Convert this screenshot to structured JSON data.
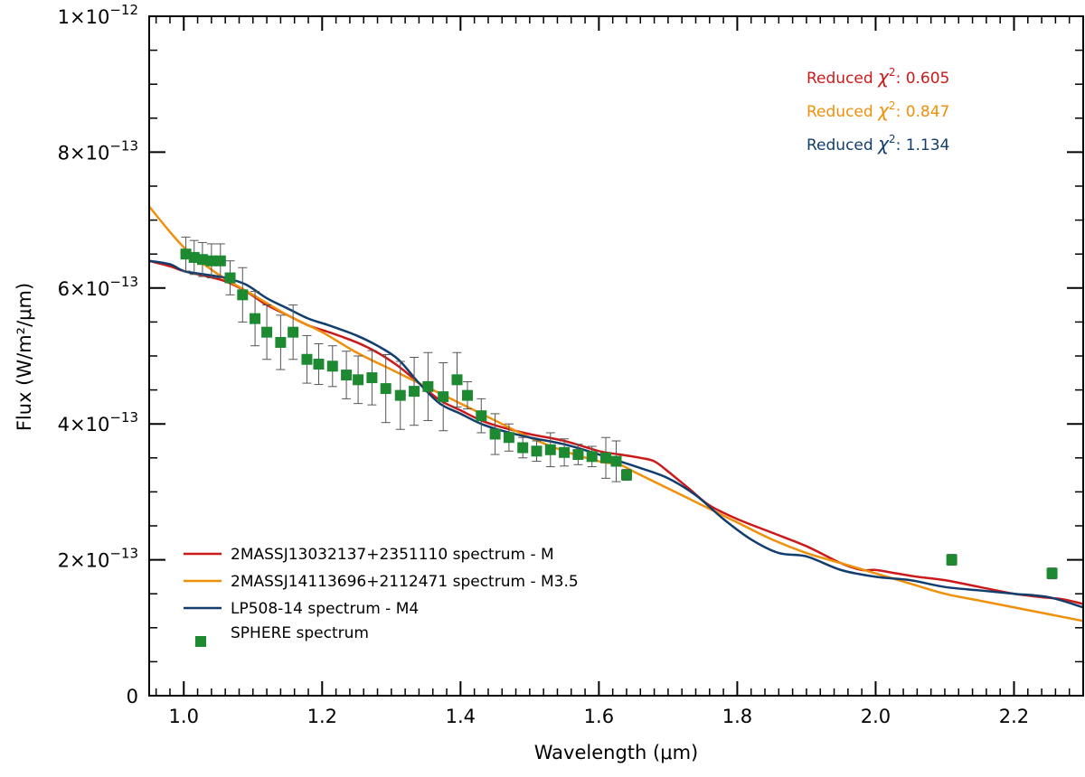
{
  "chart_data": {
    "type": "line",
    "title": "",
    "xlabel": "Wavelength (μm)",
    "ylabel": "Flux (W/m²/μm)",
    "xlim": [
      0.95,
      2.3
    ],
    "ylim": [
      0,
      1e-12
    ],
    "x_ticks": [
      1.0,
      1.2,
      1.4,
      1.6,
      1.8,
      2.0,
      2.2
    ],
    "x_tick_labels": [
      "1.0",
      "1.2",
      "1.4",
      "1.6",
      "1.8",
      "2.0",
      "2.2"
    ],
    "y_ticks": [
      0,
      2e-13,
      4e-13,
      6e-13,
      8e-13,
      1e-12
    ],
    "y_tick_labels": [
      {
        "mantissa": "0",
        "exponent": ""
      },
      {
        "mantissa": "2×10",
        "exponent": "−13"
      },
      {
        "mantissa": "4×10",
        "exponent": "−13"
      },
      {
        "mantissa": "6×10",
        "exponent": "−13"
      },
      {
        "mantissa": "8×10",
        "exponent": "−13"
      },
      {
        "mantissa": "1×10",
        "exponent": "−12"
      }
    ],
    "series": [
      {
        "name": "2MASSJ13032137+2351110 spectrum - M",
        "color": "#cc1a1a",
        "x": [
          0.95,
          0.98,
          1.0,
          1.03,
          1.06,
          1.09,
          1.12,
          1.15,
          1.18,
          1.21,
          1.25,
          1.28,
          1.31,
          1.34,
          1.37,
          1.4,
          1.43,
          1.46,
          1.5,
          1.55,
          1.6,
          1.63,
          1.66,
          1.68,
          1.7,
          1.73,
          1.76,
          1.8,
          1.85,
          1.9,
          1.95,
          1.98,
          2.0,
          2.03,
          2.06,
          2.1,
          2.15,
          2.2,
          2.24,
          2.27,
          2.3
        ],
        "y": [
          6.4e-13,
          6.32e-13,
          6.25e-13,
          6.18e-13,
          6.1e-13,
          5.95e-13,
          5.75e-13,
          5.6e-13,
          5.45e-13,
          5.35e-13,
          5.2e-13,
          5.05e-13,
          4.85e-13,
          4.6e-13,
          4.35e-13,
          4.2e-13,
          4.05e-13,
          3.95e-13,
          3.85e-13,
          3.75e-13,
          3.6e-13,
          3.55e-13,
          3.5e-13,
          3.45e-13,
          3.3e-13,
          3.05e-13,
          2.8e-13,
          2.6e-13,
          2.4e-13,
          2.2e-13,
          1.95e-13,
          1.85e-13,
          1.85e-13,
          1.8e-13,
          1.75e-13,
          1.7e-13,
          1.6e-13,
          1.5e-13,
          1.45e-13,
          1.42e-13,
          1.35e-13
        ]
      },
      {
        "name": "2MASSJ14113696+2112471 spectrum - M3.5",
        "color": "#f0900a",
        "x": [
          0.95,
          1.0,
          1.05,
          1.1,
          1.15,
          1.2,
          1.25,
          1.3,
          1.35,
          1.4,
          1.45,
          1.5,
          1.55,
          1.6,
          1.63,
          1.65,
          1.7,
          1.75,
          1.8,
          1.85,
          1.9,
          1.95,
          2.0,
          2.05,
          2.1,
          2.15,
          2.2,
          2.25,
          2.3
        ],
        "y": [
          7.2e-13,
          6.6e-13,
          6.2e-13,
          5.9e-13,
          5.6e-13,
          5.35e-13,
          5.05e-13,
          4.8e-13,
          4.55e-13,
          4.3e-13,
          4.05e-13,
          3.8e-13,
          3.6e-13,
          3.45e-13,
          3.4e-13,
          3.3e-13,
          3.05e-13,
          2.8e-13,
          2.55e-13,
          2.3e-13,
          2.1e-13,
          1.95e-13,
          1.8e-13,
          1.65e-13,
          1.5e-13,
          1.4e-13,
          1.3e-13,
          1.2e-13,
          1.1e-13
        ]
      },
      {
        "name": "LP508-14 spectrum - M4",
        "color": "#123e6e",
        "x": [
          0.95,
          0.98,
          1.0,
          1.03,
          1.06,
          1.09,
          1.12,
          1.15,
          1.18,
          1.21,
          1.25,
          1.28,
          1.31,
          1.34,
          1.37,
          1.4,
          1.43,
          1.46,
          1.5,
          1.55,
          1.6,
          1.63,
          1.66,
          1.7,
          1.74,
          1.78,
          1.82,
          1.86,
          1.9,
          1.95,
          2.0,
          2.05,
          2.1,
          2.15,
          2.2,
          2.25,
          2.3
        ],
        "y": [
          6.4e-13,
          6.35e-13,
          6.25e-13,
          6.2e-13,
          6.15e-13,
          6.05e-13,
          5.85e-13,
          5.7e-13,
          5.55e-13,
          5.45e-13,
          5.3e-13,
          5.15e-13,
          4.95e-13,
          4.6e-13,
          4.3e-13,
          4.15e-13,
          4e-13,
          3.9e-13,
          3.8e-13,
          3.7e-13,
          3.55e-13,
          3.45e-13,
          3.35e-13,
          3.2e-13,
          2.95e-13,
          2.6e-13,
          2.3e-13,
          2.1e-13,
          2.05e-13,
          1.85e-13,
          1.75e-13,
          1.7e-13,
          1.6e-13,
          1.55e-13,
          1.5e-13,
          1.45e-13,
          1.3e-13
        ]
      }
    ],
    "points": {
      "name": "SPHERE spectrum",
      "color": "#1d8a32",
      "x": [
        1.003,
        1.015,
        1.027,
        1.04,
        1.053,
        1.067,
        1.085,
        1.103,
        1.12,
        1.14,
        1.158,
        1.178,
        1.195,
        1.215,
        1.235,
        1.252,
        1.272,
        1.292,
        1.313,
        1.333,
        1.353,
        1.375,
        1.395,
        1.41,
        1.43,
        1.45,
        1.47,
        1.49,
        1.51,
        1.53,
        1.55,
        1.57,
        1.59,
        1.61,
        1.625,
        1.64,
        2.11,
        2.255
      ],
      "y": [
        6.5e-13,
        6.45e-13,
        6.42e-13,
        6.4e-13,
        6.4e-13,
        6.15e-13,
        5.9e-13,
        5.55e-13,
        5.35e-13,
        5.2e-13,
        5.35e-13,
        4.95e-13,
        4.88e-13,
        4.85e-13,
        4.72e-13,
        4.65e-13,
        4.68e-13,
        4.52e-13,
        4.42e-13,
        4.48e-13,
        4.55e-13,
        4.4e-13,
        4.65e-13,
        4.42e-13,
        4.12e-13,
        3.85e-13,
        3.8e-13,
        3.65e-13,
        3.6e-13,
        3.62e-13,
        3.58e-13,
        3.55e-13,
        3.52e-13,
        3.5e-13,
        3.45e-13,
        3.25e-13,
        2e-13,
        1.8e-13
      ],
      "err": [
        2.5e-14,
        2.5e-14,
        2.5e-14,
        2.5e-14,
        2.5e-14,
        2.5e-14,
        4e-14,
        4e-14,
        4e-14,
        4e-14,
        4e-14,
        3.5e-14,
        3e-14,
        3e-14,
        3.5e-14,
        3.5e-14,
        4e-14,
        5e-14,
        5e-14,
        5e-14,
        5e-14,
        5e-14,
        4e-14,
        2e-14,
        2.5e-14,
        3e-14,
        2e-14,
        1.5e-14,
        1.5e-14,
        2.5e-14,
        2e-14,
        1.5e-14,
        1.5e-14,
        3e-14,
        3e-14,
        8e-15,
        8e-15,
        8e-15
      ]
    },
    "legend": {
      "placement": "bottom-left",
      "entries": [
        "2MASSJ13032137+2351110 spectrum - M",
        "2MASSJ14113696+2112471 spectrum - M3.5",
        "LP508-14 spectrum - M4",
        "SPHERE spectrum"
      ]
    },
    "annotations": {
      "placement": "top-right",
      "items": [
        {
          "prefix": "Reduced ",
          "chi": "χ",
          "sup": "2",
          "suffix": ": 0.605",
          "color": "#cc1a1a"
        },
        {
          "prefix": "Reduced ",
          "chi": "χ",
          "sup": "2",
          "suffix": ": 0.847",
          "color": "#f0900a"
        },
        {
          "prefix": "Reduced ",
          "chi": "χ",
          "sup": "2",
          "suffix": ": 1.134",
          "color": "#123e6e"
        }
      ]
    }
  }
}
